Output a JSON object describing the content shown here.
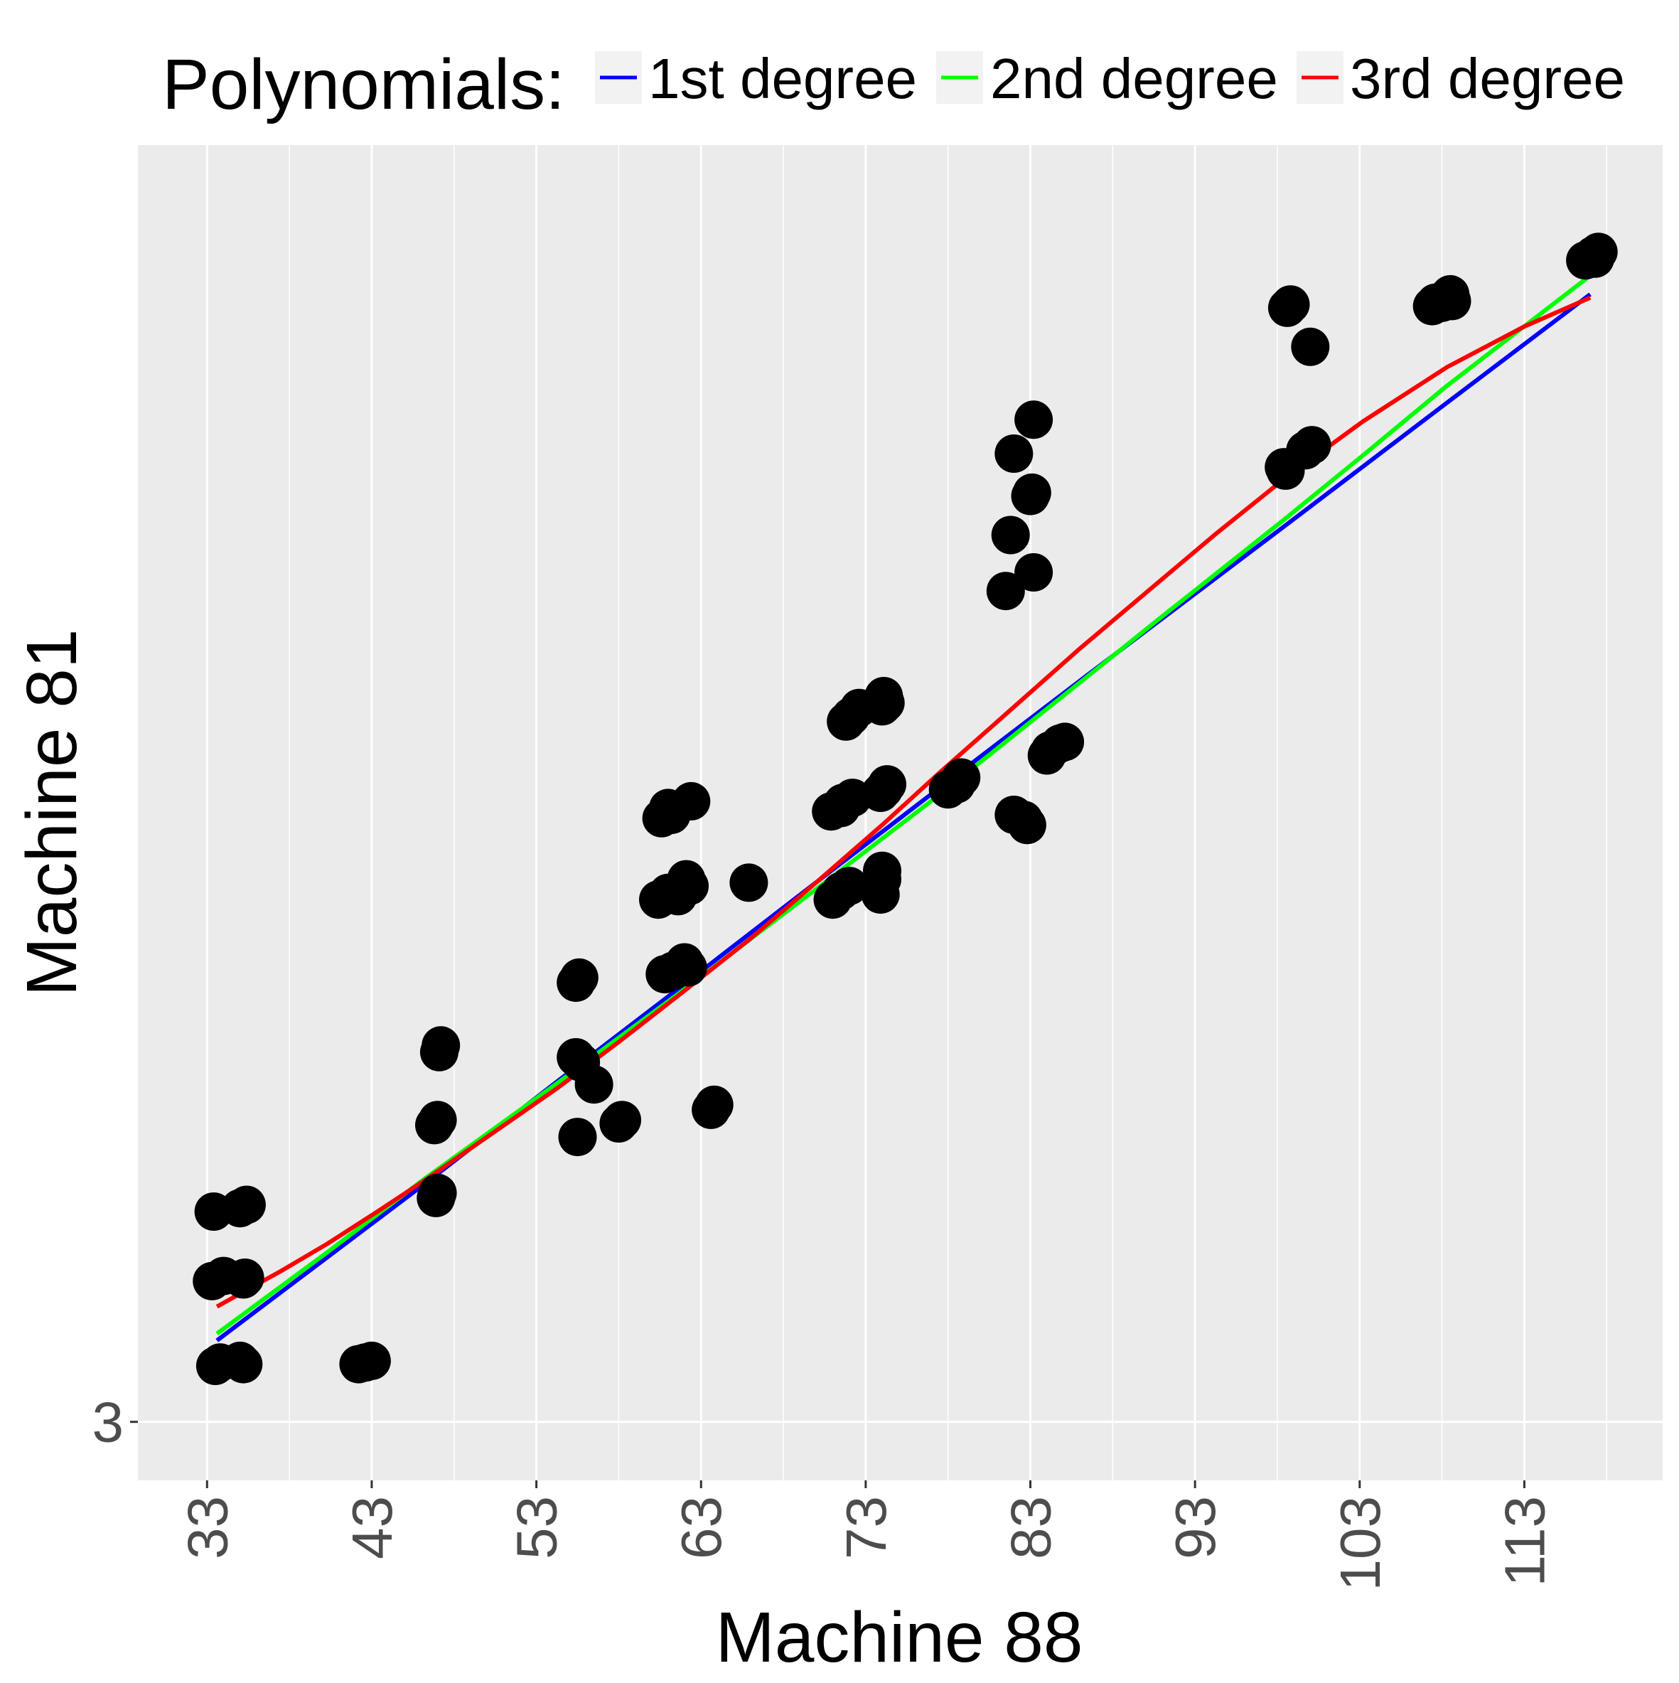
{
  "chart_data": {
    "type": "scatter",
    "title": "",
    "xlabel": "Machine 88",
    "ylabel": "Machine 81",
    "xlim": [
      28.8,
      121.4
    ],
    "ylim": [
      -0.45,
      78.3
    ],
    "x_ticks": [
      33,
      43,
      53,
      63,
      73,
      83,
      93,
      103,
      113
    ],
    "x_tick_labels": [
      "33",
      "43",
      "53",
      "63",
      "73",
      "83",
      "93",
      "103",
      "113"
    ],
    "y_ticks": [
      3
    ],
    "y_tick_labels": [
      "3"
    ],
    "grid": true,
    "legend": {
      "title": "Polynomials:",
      "position": "top",
      "entries": [
        {
          "label": "1st degree",
          "color": "#0000ff"
        },
        {
          "label": "2nd degree",
          "color": "#00ff00"
        },
        {
          "label": "3rd degree",
          "color": "#ff0000"
        }
      ]
    },
    "colors": {
      "panel": "#ebebeb",
      "grid": "#ffffff",
      "points": "#000000",
      "axis_text": "#4d4d4d",
      "label_text": "#000000"
    },
    "points": [
      [
        33.5,
        6.3
      ],
      [
        33.8,
        6.5
      ],
      [
        35.2,
        6.4
      ],
      [
        35.0,
        6.6
      ],
      [
        42.2,
        6.4
      ],
      [
        42.6,
        6.5
      ],
      [
        43.0,
        6.6
      ],
      [
        33.3,
        11.3
      ],
      [
        34.0,
        11.6
      ],
      [
        35.2,
        11.4
      ],
      [
        35.3,
        11.5
      ],
      [
        33.4,
        15.4
      ],
      [
        35.0,
        15.6
      ],
      [
        35.4,
        15.8
      ],
      [
        46.9,
        16.2
      ],
      [
        47.0,
        16.5
      ],
      [
        46.8,
        20.5
      ],
      [
        47.0,
        20.8
      ],
      [
        47.1,
        24.8
      ],
      [
        47.2,
        25.2
      ],
      [
        55.5,
        19.8
      ],
      [
        55.7,
        24.2
      ],
      [
        55.4,
        24.5
      ],
      [
        56.5,
        22.9
      ],
      [
        58.0,
        20.6
      ],
      [
        58.2,
        20.8
      ],
      [
        63.6,
        21.4
      ],
      [
        63.8,
        21.7
      ],
      [
        55.4,
        28.9
      ],
      [
        55.6,
        29.2
      ],
      [
        60.8,
        29.4
      ],
      [
        61.3,
        29.6
      ],
      [
        62.0,
        30.1
      ],
      [
        62.2,
        29.8
      ],
      [
        60.4,
        33.8
      ],
      [
        61.0,
        34.2
      ],
      [
        61.6,
        34.0
      ],
      [
        62.1,
        35.0
      ],
      [
        62.3,
        34.6
      ],
      [
        60.6,
        38.6
      ],
      [
        61.2,
        38.8
      ],
      [
        61.0,
        39.2
      ],
      [
        62.4,
        39.6
      ],
      [
        65.9,
        34.8
      ],
      [
        71.0,
        33.8
      ],
      [
        71.5,
        34.3
      ],
      [
        72.0,
        34.6
      ],
      [
        73.9,
        34.1
      ],
      [
        74.0,
        35.0
      ],
      [
        74.0,
        35.5
      ],
      [
        70.9,
        39.0
      ],
      [
        71.5,
        39.2
      ],
      [
        71.6,
        39.5
      ],
      [
        72.2,
        39.8
      ],
      [
        73.9,
        40.1
      ],
      [
        74.1,
        40.3
      ],
      [
        74.3,
        40.6
      ],
      [
        71.8,
        44.3
      ],
      [
        72.1,
        44.6
      ],
      [
        72.6,
        45.1
      ],
      [
        74.0,
        45.2
      ],
      [
        74.2,
        45.4
      ],
      [
        74.1,
        45.8
      ],
      [
        78.0,
        40.3
      ],
      [
        78.5,
        40.6
      ],
      [
        78.8,
        41.0
      ],
      [
        82.0,
        38.8
      ],
      [
        82.6,
        38.5
      ],
      [
        82.8,
        38.2
      ],
      [
        84.0,
        42.3
      ],
      [
        84.2,
        42.6
      ],
      [
        84.8,
        43.0
      ],
      [
        85.1,
        43.1
      ],
      [
        81.5,
        52.0
      ],
      [
        81.8,
        55.3
      ],
      [
        83.2,
        53.1
      ],
      [
        83.0,
        57.6
      ],
      [
        83.1,
        57.8
      ],
      [
        82.0,
        60.1
      ],
      [
        83.2,
        62.1
      ],
      [
        98.5,
        59.1
      ],
      [
        98.4,
        59.3
      ],
      [
        99.7,
        60.3
      ],
      [
        100.1,
        60.6
      ],
      [
        98.6,
        68.7
      ],
      [
        98.8,
        68.9
      ],
      [
        100.0,
        66.4
      ],
      [
        107.4,
        68.8
      ],
      [
        107.6,
        69.0
      ],
      [
        108.0,
        69.0
      ],
      [
        108.3,
        69.3
      ],
      [
        108.5,
        69.5
      ],
      [
        108.6,
        69.1
      ],
      [
        116.7,
        71.5
      ],
      [
        117.2,
        71.8
      ],
      [
        117.5,
        72.0
      ],
      [
        117.3,
        71.6
      ]
    ],
    "series": [
      {
        "name": "1st degree",
        "color": "#0000ff",
        "x": [
          33.6,
          46.3,
          54.3,
          61.7,
          70.1,
          77.5,
          86.0,
          98.4,
          108.3,
          117.0
        ],
        "y": [
          7.8,
          17.1,
          23.1,
          28.6,
          34.9,
          40.4,
          46.7,
          55.8,
          63.1,
          69.5
        ]
      },
      {
        "name": "2nd degree",
        "color": "#00ff00",
        "x": [
          33.6,
          40.3,
          46.3,
          54.3,
          61.7,
          70.1,
          77.5,
          86.0,
          91.0,
          98.4,
          103.2,
          108.3,
          117.0
        ],
        "y": [
          8.2,
          13.0,
          17.4,
          23.0,
          28.3,
          34.5,
          40.0,
          46.6,
          50.5,
          56.2,
          60.0,
          64.1,
          70.6
        ]
      },
      {
        "name": "3rd degree",
        "color": "#ff0000",
        "x": [
          33.6,
          37.5,
          40.3,
          43.5,
          46.3,
          50.0,
          54.3,
          58.0,
          61.7,
          66.0,
          70.1,
          74.0,
          77.5,
          81.0,
          86.0,
          91.0,
          94.3,
          98.4,
          103.2,
          108.3,
          113.0,
          117.0
        ],
        "y": [
          9.8,
          11.9,
          13.5,
          15.5,
          17.3,
          19.8,
          22.7,
          25.4,
          28.2,
          31.5,
          34.9,
          38.2,
          41.3,
          44.3,
          48.6,
          52.7,
          55.4,
          58.6,
          62.0,
          65.2,
          67.6,
          69.3
        ]
      }
    ]
  }
}
